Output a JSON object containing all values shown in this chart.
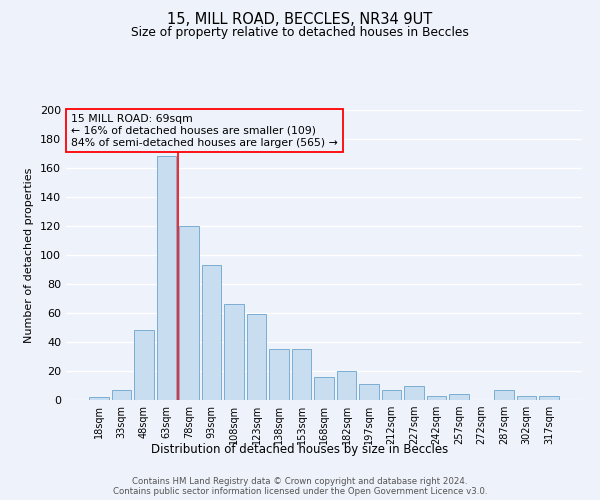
{
  "title": "15, MILL ROAD, BECCLES, NR34 9UT",
  "subtitle": "Size of property relative to detached houses in Beccles",
  "xlabel": "Distribution of detached houses by size in Beccles",
  "ylabel": "Number of detached properties",
  "bar_color": "#c9ddf0",
  "bar_edge_color": "#7aadd4",
  "categories": [
    "18sqm",
    "33sqm",
    "48sqm",
    "63sqm",
    "78sqm",
    "93sqm",
    "108sqm",
    "123sqm",
    "138sqm",
    "153sqm",
    "168sqm",
    "182sqm",
    "197sqm",
    "212sqm",
    "227sqm",
    "242sqm",
    "257sqm",
    "272sqm",
    "287sqm",
    "302sqm",
    "317sqm"
  ],
  "values": [
    2,
    7,
    48,
    168,
    120,
    93,
    66,
    59,
    35,
    35,
    16,
    20,
    11,
    7,
    10,
    3,
    4,
    0,
    7,
    3,
    3
  ],
  "ylim": [
    0,
    200
  ],
  "yticks": [
    0,
    20,
    40,
    60,
    80,
    100,
    120,
    140,
    160,
    180,
    200
  ],
  "property_label": "15 MILL ROAD: 69sqm",
  "annotation_line1": "← 16% of detached houses are smaller (109)",
  "annotation_line2": "84% of semi-detached houses are larger (565) →",
  "vline_x": 3.5,
  "bg_color": "#eef2fa",
  "grid_color": "#ffffff",
  "footer1": "Contains HM Land Registry data © Crown copyright and database right 2024.",
  "footer2": "Contains public sector information licensed under the Open Government Licence v3.0."
}
